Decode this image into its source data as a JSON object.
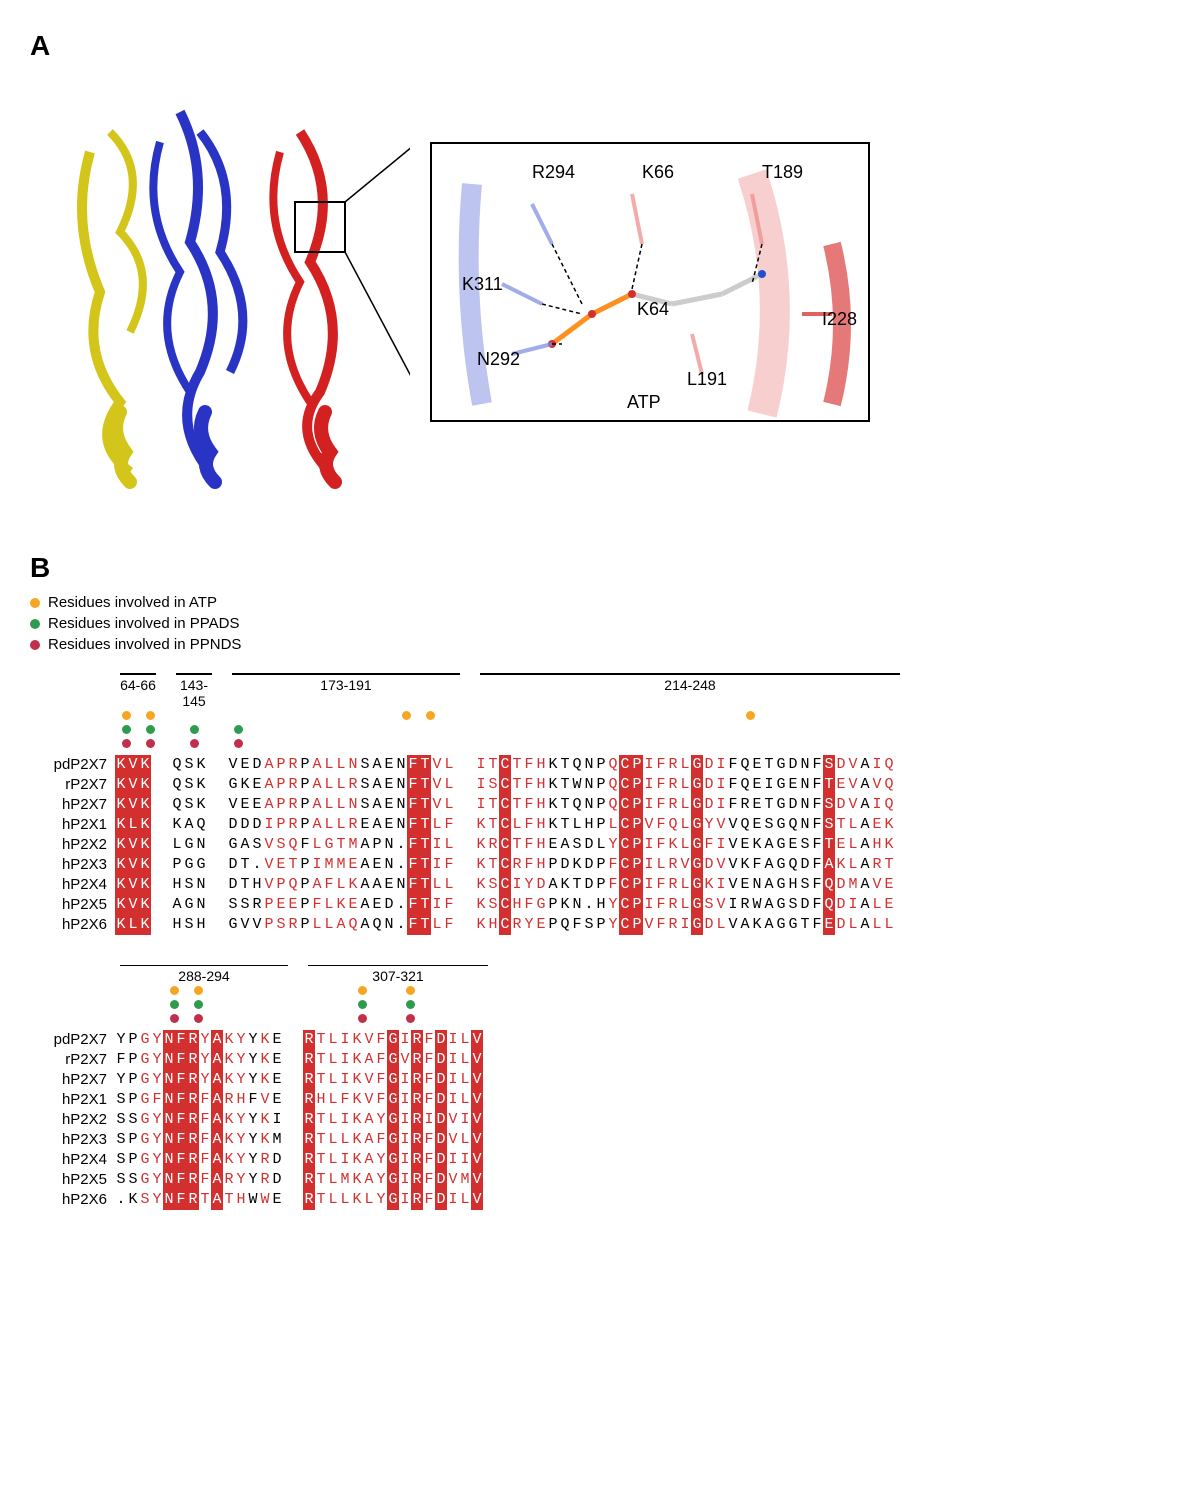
{
  "panelA": {
    "label": "A",
    "structure_colors": {
      "subunit1": "#2933c4",
      "subunit2": "#d4c51a",
      "subunit3": "#d32020"
    },
    "inset": {
      "residues": [
        "R294",
        "K66",
        "T189",
        "K311",
        "K64",
        "I228",
        "N292",
        "L191"
      ],
      "ligand": "ATP",
      "atom_colors": {
        "carbon": "#cccccc",
        "nitrogen": "#2050d0",
        "oxygen": "#d03030",
        "phosphorus": "#ff9020"
      }
    }
  },
  "panelB": {
    "label": "B",
    "legend": [
      {
        "color": "#f5a623",
        "text": "Residues involved in ATP"
      },
      {
        "color": "#2e9b4f",
        "text": "Residues involved in PPADS"
      },
      {
        "color": "#c0304c",
        "text": "Residues involved in PPNDS"
      }
    ],
    "species": [
      "pdP2X7",
      "rP2X7",
      "hP2X7",
      "hP2X1",
      "hP2X2",
      "hP2X3",
      "hP2X4",
      "hP2X5",
      "hP2X6"
    ],
    "regions_row1": [
      {
        "title": "64-66",
        "width_ch": 3
      },
      {
        "title": "143-145",
        "width_ch": 3
      },
      {
        "title": "173-191",
        "width_ch": 19
      },
      {
        "title": "214-248",
        "width_ch": 35
      }
    ],
    "regions_row2": [
      {
        "title": "288-294",
        "width_ch": 14
      },
      {
        "title": "307-321",
        "width_ch": 15
      }
    ],
    "markers_row1": {
      "atp": [
        0,
        2,
        20,
        22,
        47
      ],
      "ppads": [
        0,
        2,
        4,
        6
      ],
      "ppnds": [
        0,
        2,
        4,
        6
      ]
    },
    "markers_row2": {
      "atp": [
        4,
        6,
        18,
        22
      ],
      "ppads": [
        4,
        6,
        18,
        22
      ],
      "ppnds": [
        4,
        6,
        18,
        22
      ]
    },
    "colors": {
      "conserved_bg": "#d32f2f",
      "conserved_fg_text": "#ffffff",
      "similar_fg": "#d32f2f",
      "box_border": "#5b7bd6"
    },
    "sequences_row1": {
      "r64_66": [
        "KVK",
        "KVK",
        "KVK",
        "KLK",
        "KVK",
        "KVK",
        "KVK",
        "KVK",
        "KLK"
      ],
      "r143_145": [
        "QSK",
        "QSK",
        "QSK",
        "KAQ",
        "LGN",
        "PGG",
        "HSN",
        "AGN",
        "HSH"
      ],
      "r173_191": [
        "VEDAPRPALLNSAENFTVL",
        "GKEAPRPALLRSAENFTVL",
        "VEEAPRPALLNSAENFTVL",
        "DDDIPRPALLREAENFTLF",
        "GASVSQFLGTMAPN.FTIL",
        "DT.VETPIMMEAEN.FTIF",
        "DTHVPQPAFLKAAENFTLL",
        "SSRPEEPFLKEAED.FTIF",
        "GVVPSRPLLAQAQN.FTLF"
      ],
      "r214_248": [
        "ITCTFHKTQNPQCPIFRLGDIFQETGDNFSDVAIQ",
        "ISCTFHKTWNPQCPIFRLGDIFQEIGENFTEVAVQ",
        "ITCTFHKTQNPQCPIFRLGDIFRETGDNFSDVAIQ",
        "KTCLFHKTLHPLCPVFQLGYVVQESGQNFSTLAEK",
        "KRCTFHEASDLYCPIFKLGFIVEKAGESFTELAHK",
        "KTCRFHPDKDPFCPILRVGDVVKFAGQDFAKLART",
        "KSCIYDAKTDPFCPIFRLGKIVENAGHSFQDMAVE",
        "KSCHFGPKN.HYCPIFRLGSVIRWAGSDFQDIALE",
        "KHCRYEPQFSPYCPVFRIGDLVAKAGGTFEDLALL"
      ]
    },
    "sequences_row2": {
      "r288_294": [
        "YPGYNFRYAKYYKE",
        "FPGYNFRYAKYYKE",
        "YPGYNFRYAKYYKE",
        "SPGFNFRFARHFVE",
        "SSGYNFRFAKYYKI",
        "SPGYNFRFAKYYKM",
        "SPGYNFRFAKYYRD",
        "SSGYNFRFARYYRD",
        ".KSYNFRTATHWWE"
      ],
      "r307_321": [
        "RTLIKVFGIRFDILV",
        "RTLIKAFGVRFDILV",
        "RTLIKVFGIRFDILV",
        "RHLFKVFGIRFDILV",
        "RTLIKAYGIRIDVIV",
        "RTLLKAFGIRFDVLV",
        "RTLIKAYGIRFDIIV",
        "RTLMKAYGIRFDVMV",
        "RTLLKLYGIRFDILV"
      ]
    },
    "conservation_row1": {
      "r64_66": "CCC",
      "r143_145": "...",
      "r173_191": "...sss.ssss....CCss",
      "r214_248": "ssCsss.....sCCssssCss........Css.ss"
    },
    "conservation_row2": {
      "r288_294": "..ssCCCsCss.s.",
      "r307_321": "CssssssCsCsCssC"
    }
  }
}
